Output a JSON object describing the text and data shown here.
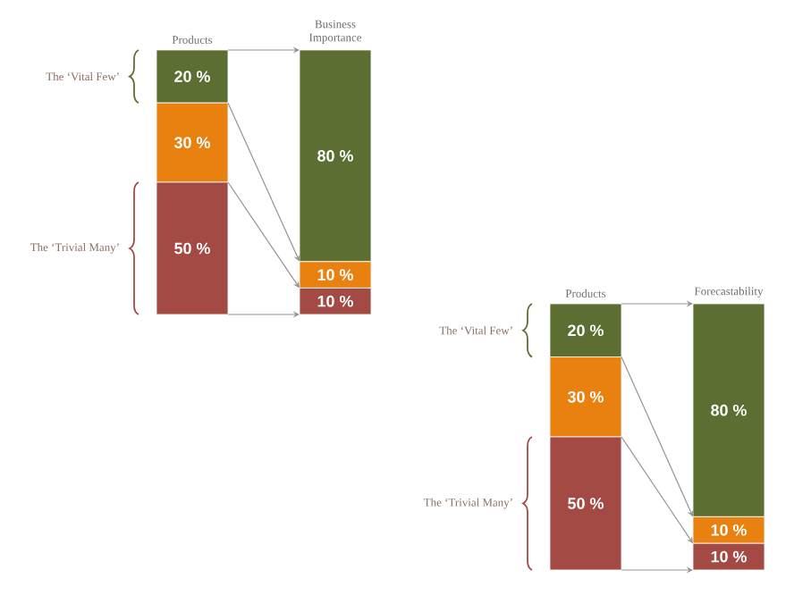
{
  "chart_data": [
    {
      "type": "bar",
      "stacked": true,
      "categories": [
        "Products",
        "Business Importance"
      ],
      "ylim": [
        0,
        100
      ],
      "series": [
        {
          "color": "#a34a44",
          "values": [
            50,
            10
          ],
          "value_labels": [
            "50 %",
            "10 %"
          ]
        },
        {
          "color": "#e8810f",
          "values": [
            30,
            10
          ],
          "value_labels": [
            "30 %",
            "10 %"
          ]
        },
        {
          "color": "#5c6e31",
          "values": [
            20,
            80
          ],
          "value_labels": [
            "20 %",
            "80 %"
          ]
        }
      ],
      "annotations": [
        "The ‘Vital Few’",
        "The ‘Trivial Many’"
      ]
    },
    {
      "type": "bar",
      "stacked": true,
      "categories": [
        "Products",
        "Forecastability"
      ],
      "ylim": [
        0,
        100
      ],
      "series": [
        {
          "color": "#a34a44",
          "values": [
            50,
            10
          ],
          "value_labels": [
            "50 %",
            "10 %"
          ]
        },
        {
          "color": "#e8810f",
          "values": [
            30,
            10
          ],
          "value_labels": [
            "30 %",
            "10 %"
          ]
        },
        {
          "color": "#5c6e31",
          "values": [
            20,
            80
          ],
          "value_labels": [
            "20 %",
            "80 %"
          ]
        }
      ],
      "annotations": [
        "The ‘Vital Few’",
        "The ‘Trivial Many’"
      ]
    }
  ]
}
